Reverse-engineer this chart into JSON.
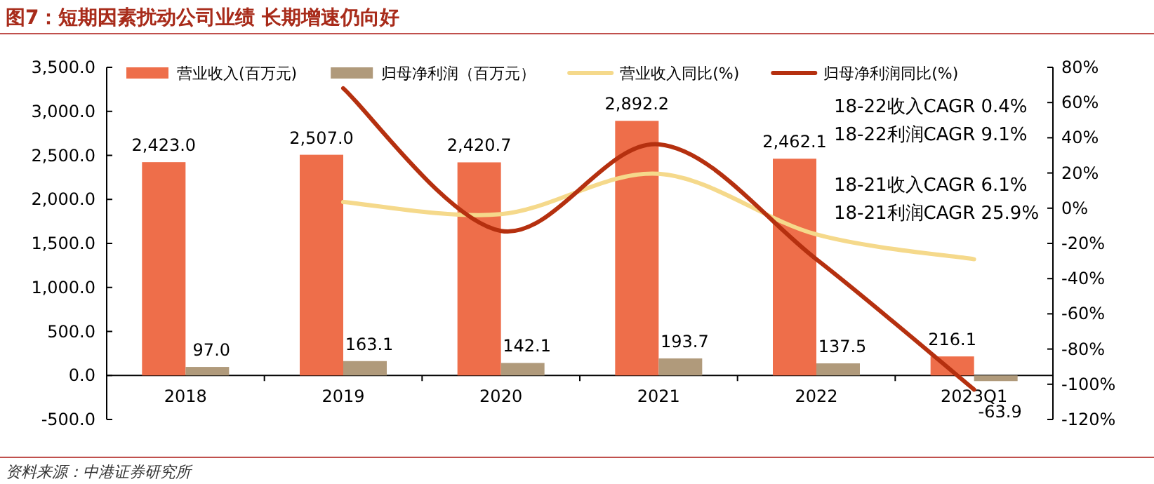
{
  "chart_data": {
    "type": "bar",
    "title": "图7：短期因素扰动公司业绩 长期增速仍向好",
    "categories": [
      "2018",
      "2019",
      "2020",
      "2021",
      "2022",
      "2023Q1"
    ],
    "series": [
      {
        "name": "营业收入(百万元)",
        "color": "#ee6e4a",
        "values": [
          2423.0,
          2507.0,
          2420.7,
          2892.2,
          2462.1,
          216.1
        ],
        "value_labels": [
          "2,423.0",
          "2,507.0",
          "2,420.7",
          "2,892.2",
          "2,462.1",
          "216.1"
        ]
      },
      {
        "name": "归母净利润（百万元）",
        "color": "#b09a7b",
        "values": [
          97.0,
          163.1,
          142.1,
          193.7,
          137.5,
          -63.9
        ],
        "value_labels": [
          "97.0",
          "163.1",
          "142.1",
          "193.7",
          "137.5",
          "-63.9"
        ]
      },
      {
        "name": "营业收入同比(%)",
        "type": "line",
        "axis": "y2",
        "color": "#f5d98b",
        "values": [
          null,
          3.5,
          -3.4,
          19.5,
          -14.9,
          -29
        ]
      },
      {
        "name": "归母净利润同比(%)",
        "type": "line",
        "axis": "y2",
        "color": "#b5300f",
        "values": [
          null,
          68.1,
          -12.9,
          36.3,
          -29.0,
          -103
        ]
      }
    ],
    "ylim": [
      -500,
      3500
    ],
    "yticks": [
      {
        "value": -500,
        "label": "-500.0"
      },
      {
        "value": 0,
        "label": "0.0"
      },
      {
        "value": 500,
        "label": "500.0"
      },
      {
        "value": 1000,
        "label": "1,000.0"
      },
      {
        "value": 1500,
        "label": "1,500.0"
      },
      {
        "value": 2000,
        "label": "2,000.0"
      },
      {
        "value": 2500,
        "label": "2,500.0"
      },
      {
        "value": 3000,
        "label": "3,000.0"
      },
      {
        "value": 3500,
        "label": "3,500.0"
      }
    ],
    "y2lim": [
      -120,
      80
    ],
    "y2ticks": [
      {
        "value": -120,
        "label": "-120%"
      },
      {
        "value": -100,
        "label": "-100%"
      },
      {
        "value": -80,
        "label": "-80%"
      },
      {
        "value": -60,
        "label": "-60%"
      },
      {
        "value": -40,
        "label": "-40%"
      },
      {
        "value": -20,
        "label": "-20%"
      },
      {
        "value": 0,
        "label": "0%"
      },
      {
        "value": 20,
        "label": "20%"
      },
      {
        "value": 40,
        "label": "40%"
      },
      {
        "value": 60,
        "label": "60%"
      },
      {
        "value": 80,
        "label": "80%"
      }
    ],
    "legend": "top",
    "annotations": [
      "18-22收入CAGR 0.4%",
      "18-22利润CAGR 9.1%",
      "18-21收入CAGR 6.1%",
      "18-21利润CAGR 25.9%",
      "资料来源：中港证券研究所"
    ]
  }
}
